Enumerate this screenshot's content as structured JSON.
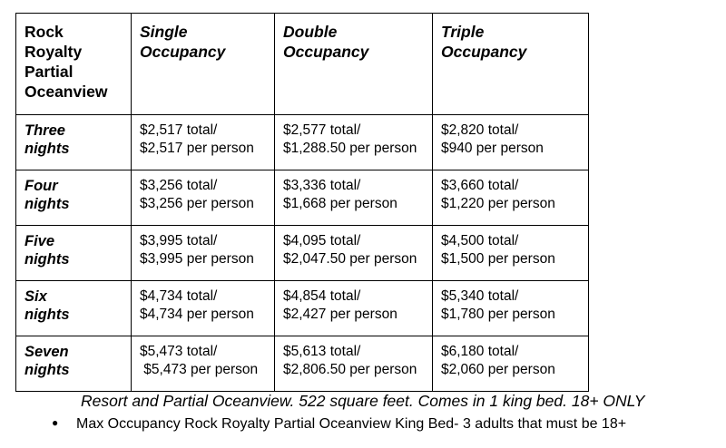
{
  "table": {
    "corner": [
      "Rock",
      "Royalty",
      "Partial",
      "Oceanview"
    ],
    "columns": [
      [
        "Single",
        "Occupancy"
      ],
      [
        "Double",
        "Occupancy"
      ],
      [
        "Triple",
        "Occupancy"
      ]
    ],
    "rows": [
      {
        "label": [
          "Three",
          "nights"
        ],
        "cells": [
          [
            "$2,517 total/",
            "$2,517 per person"
          ],
          [
            "$2,577 total/",
            "$1,288.50 per person"
          ],
          [
            "$2,820 total/",
            "$940 per person"
          ]
        ]
      },
      {
        "label": [
          "Four",
          "nights"
        ],
        "cells": [
          [
            "$3,256 total/",
            "$3,256 per person"
          ],
          [
            "$3,336 total/",
            "$1,668 per person"
          ],
          [
            "$3,660 total/",
            "$1,220 per person"
          ]
        ]
      },
      {
        "label": [
          "Five",
          "nights"
        ],
        "cells": [
          [
            "$3,995 total/",
            "$3,995 per person"
          ],
          [
            "$4,095 total/",
            "$2,047.50 per person"
          ],
          [
            "$4,500 total/",
            "$1,500 per person"
          ]
        ]
      },
      {
        "label": [
          "Six",
          "nights"
        ],
        "cells": [
          [
            "$4,734 total/",
            "$4,734 per person"
          ],
          [
            "$4,854 total/",
            "$2,427 per person"
          ],
          [
            "$5,340 total/",
            "$1,780 per person"
          ]
        ]
      },
      {
        "label": [
          "Seven",
          "nights"
        ],
        "cells": [
          [
            "$5,473 total/",
            " $5,473 per person"
          ],
          [
            "$5,613 total/",
            "$2,806.50 per person"
          ],
          [
            "$6,180 total/",
            "$2,060 per person"
          ]
        ]
      }
    ]
  },
  "note": "Resort and Partial Oceanview. 522 square feet. Comes in 1 king bed. 18+ ONLY",
  "bullets": [
    "Max Occupancy Rock Royalty Partial Oceanview King Bed- 3 adults that must be 18+"
  ]
}
